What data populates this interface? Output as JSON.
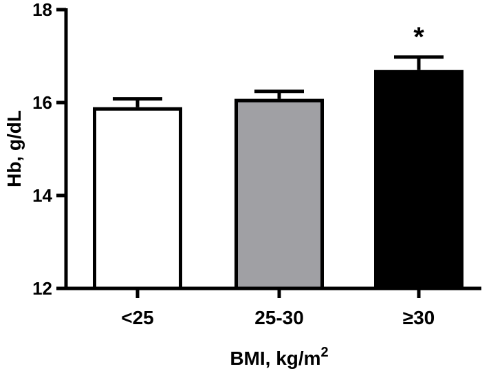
{
  "chart_data": {
    "type": "bar",
    "title": "",
    "categories": [
      "<25",
      "25-30",
      "≥30"
    ],
    "values": [
      15.9,
      16.08,
      16.7
    ],
    "errors": [
      0.18,
      0.16,
      0.28
    ],
    "fills": [
      "#ffffff",
      "#a0a0a4",
      "#000000"
    ],
    "annotations": [
      "",
      "",
      "*"
    ],
    "xlabel": "BMI, kg/m",
    "xlabel_sup": "2",
    "ylabel": "Hb, g/dL",
    "ylim": [
      12,
      18
    ],
    "yticks": [
      12,
      14,
      16,
      18
    ],
    "ytick_labels": [
      "12",
      "14",
      "16",
      "18"
    ]
  }
}
